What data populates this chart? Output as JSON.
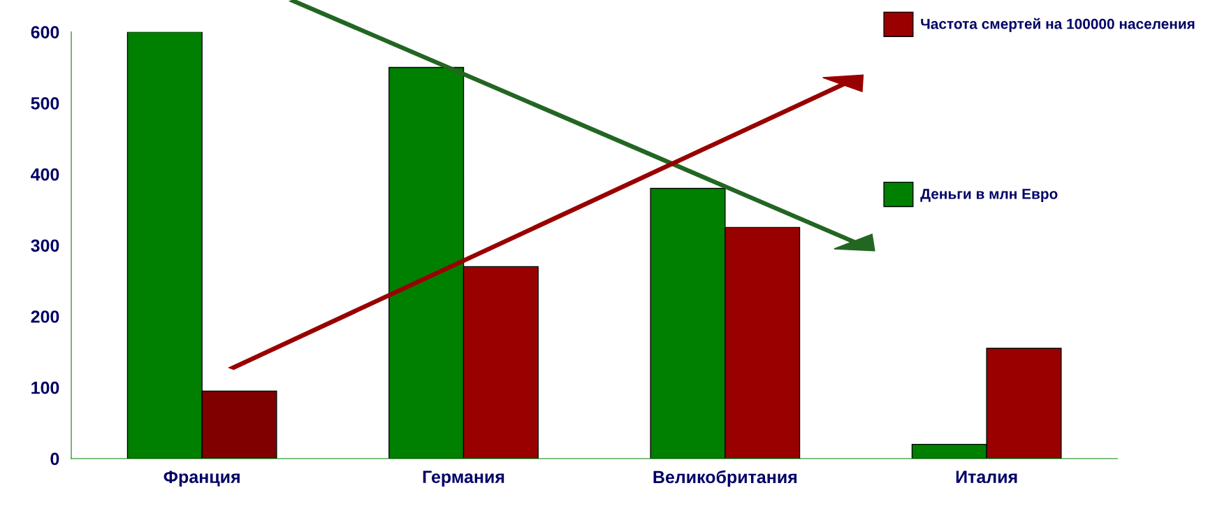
{
  "chart_data": {
    "type": "bar",
    "categories": [
      "Франция",
      "Германия",
      "Великобритания",
      "Италия"
    ],
    "series": [
      {
        "name": "Деньги в млн Евро",
        "color": "#008000",
        "values": [
          600,
          550,
          380,
          20
        ]
      },
      {
        "name": "Частота смертей на 100000 населения",
        "color": "#990000",
        "colors": [
          "#800000",
          "#990000",
          "#990000",
          "#990000"
        ],
        "values": [
          95,
          270,
          325,
          155
        ]
      }
    ],
    "ylim": [
      0,
      600
    ],
    "yticks": [
      0,
      100,
      200,
      300,
      400,
      500,
      600
    ],
    "grid": false,
    "legend": "top right"
  }
}
